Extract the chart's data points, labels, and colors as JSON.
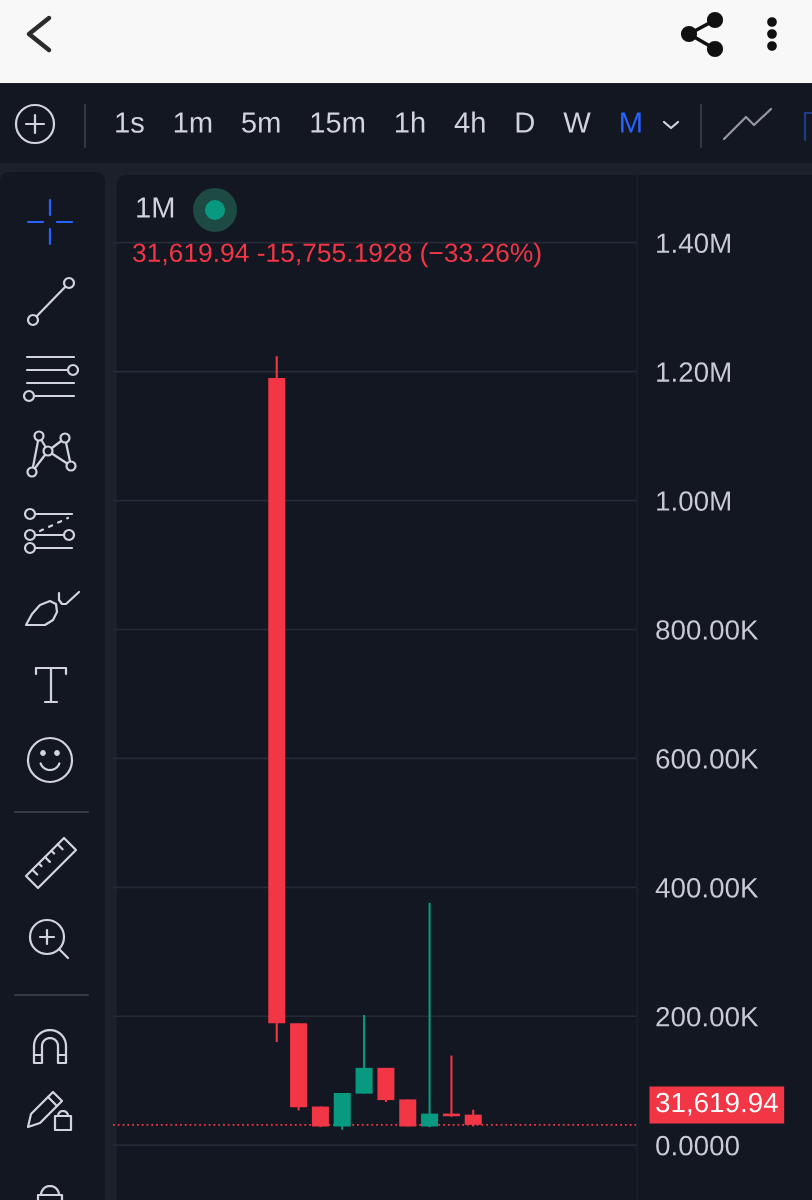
{
  "chart_data": {
    "type": "candlestick",
    "title": "1M",
    "subtitle": "31,619.94 -15,755.1928 (−33.26%)",
    "annotations": [
      "1s",
      "1m",
      "5m",
      "15m",
      "1h",
      "4h",
      "D",
      "W",
      "M"
    ],
    "categories": [
      null,
      null,
      null,
      null,
      null,
      null,
      null,
      null,
      null,
      null,
      null,
      null,
      null,
      null,
      null,
      null,
      null,
      null,
      null,
      null,
      null,
      null,
      null,
      null
    ],
    "ohlc": [
      null,
      null,
      null,
      null,
      null,
      null,
      null,
      [
        1190000,
        1224000,
        160000,
        189000
      ],
      [
        189000,
        189000,
        54000,
        59000
      ],
      [
        60000,
        60000,
        28000,
        29000
      ],
      [
        29000,
        81000,
        24000,
        81000
      ],
      [
        80000,
        202000,
        80000,
        120000
      ],
      [
        120000,
        120000,
        67000,
        70000
      ],
      [
        71000,
        71000,
        29000,
        29000
      ],
      [
        29000,
        376000,
        28000,
        49000
      ],
      [
        49000,
        139000,
        44000,
        45000
      ],
      [
        47375.13,
        55000,
        29000,
        31619.94
      ],
      null,
      null,
      null,
      null,
      null,
      null,
      null
    ],
    "colors": [
      null,
      null,
      null,
      null,
      null,
      null,
      null,
      "#f23645",
      "#f23645",
      "#f23645",
      "#089981",
      "#089981",
      "#f23645",
      "#f23645",
      "#089981",
      "#f23645",
      "#f23645",
      null,
      null,
      null,
      null,
      null,
      null,
      null
    ],
    "ylim": [
      -85000,
      1505000
    ],
    "yticks": [
      {
        "value": 0,
        "label": "0.0000"
      },
      {
        "value": 200000,
        "label": "200.00K"
      },
      {
        "value": 400000,
        "label": "400.00K"
      },
      {
        "value": 600000,
        "label": "600.00K"
      },
      {
        "value": 800000,
        "label": "800.00K"
      },
      {
        "value": 1000000,
        "label": "1.00M"
      },
      {
        "value": 1200000,
        "label": "1.20M"
      },
      {
        "value": 1400000,
        "label": "1.40M"
      }
    ],
    "grid": "y",
    "tick_labels": "y",
    "ref_lines": [
      {
        "axis": "y",
        "value": 31619.94,
        "label": "31,619.94",
        "color": "#f23645",
        "line_style": "dotted"
      }
    ]
  }
}
